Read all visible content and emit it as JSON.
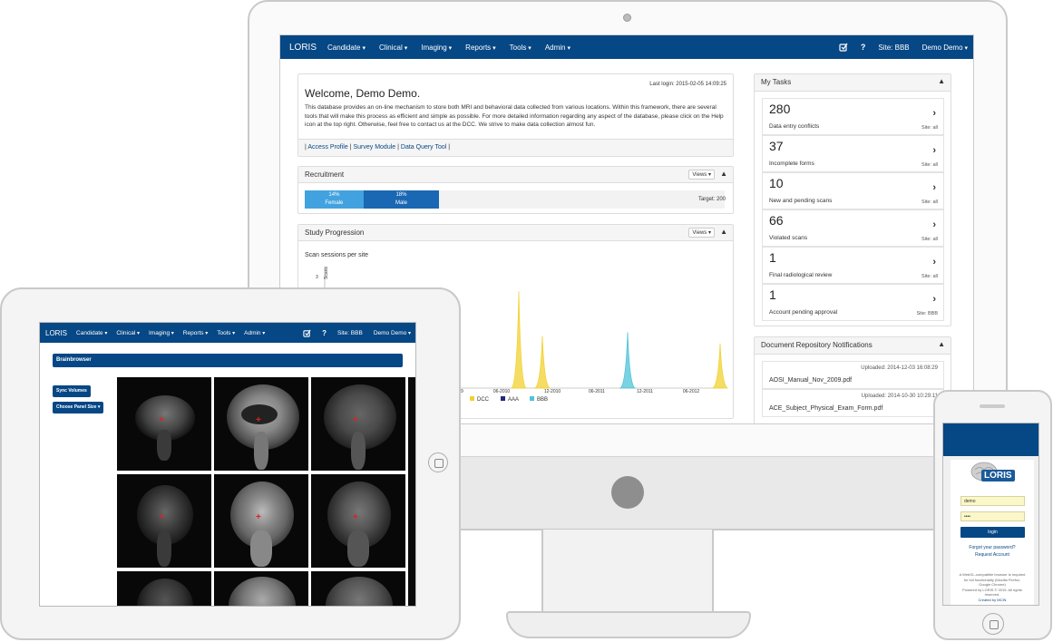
{
  "desktop": {
    "nav": {
      "brand": "LORIS",
      "menus": [
        "Candidate",
        "Clinical",
        "Imaging",
        "Reports",
        "Tools",
        "Admin"
      ],
      "site": "Site: BBB",
      "user": "Demo Demo",
      "help": "?"
    },
    "welcome": {
      "title": "Welcome, Demo Demo.",
      "last_login": "Last login: 2015-02-05 14:09:25",
      "body": "This database provides an on-line mechanism to store both MRI and behavioral data collected from various locations. Within this framework, there are several tools that will make this process as efficient and simple as possible. For more detailed information regarding any aspect of the database, please click on the Help icon at the top right. Otherwise, feel free to contact us at the DCC. We strive to make data collection almost fun.",
      "links": [
        "Access Profile",
        "Survey Module",
        "Data Query Tool"
      ]
    },
    "recruitment": {
      "title": "Recruitment",
      "views": "Views",
      "female": {
        "pct": "14%",
        "label": "Female",
        "value": 14,
        "color": "#42a2e0"
      },
      "male": {
        "pct": "18%",
        "label": "Male",
        "value": 18,
        "color": "#1a67b3"
      },
      "target": "Target: 200"
    },
    "progression": {
      "title": "Study Progression",
      "views": "Views",
      "chart_title": "Scan sessions per site",
      "y_axis": "Scans",
      "y_tick": "3",
      "x_ticks": [
        "09",
        "06-2010",
        "12-2010",
        "06-2011",
        "12-2011",
        "06-2012"
      ]
    },
    "tasks": {
      "title": "My Tasks",
      "items": [
        {
          "count": "280",
          "label": "Data entry conflicts",
          "site": "Site: all"
        },
        {
          "count": "37",
          "label": "Incomplete forms",
          "site": "Site: all"
        },
        {
          "count": "10",
          "label": "New and pending scans",
          "site": "Site: all"
        },
        {
          "count": "66",
          "label": "Violated scans",
          "site": "Site: all"
        },
        {
          "count": "1",
          "label": "Final radiological review",
          "site": "Site: all"
        },
        {
          "count": "1",
          "label": "Account pending approval",
          "site": "Site: BBB"
        }
      ]
    },
    "docs": {
      "title": "Document Repository Notifications",
      "items": [
        {
          "uploaded": "Uploaded: 2014-12-03 16:08:29",
          "file": "AOSI_Manual_Nov_2009.pdf"
        },
        {
          "uploaded": "Uploaded: 2014-10-30 10:29:11",
          "file": "ACE_Subject_Physical_Exam_Form.pdf"
        }
      ]
    }
  },
  "chart_data": {
    "type": "area",
    "title": "Scan sessions per site",
    "ylabel": "Scans",
    "series": [
      {
        "name": "DCC",
        "color": "#f2d230"
      },
      {
        "name": "AAA",
        "color": "#1f2a7a"
      },
      {
        "name": "BBB",
        "color": "#4fc3d8"
      }
    ],
    "x_ticks": [
      "09",
      "06-2010",
      "12-2010",
      "06-2011",
      "12-2011",
      "06-2012"
    ],
    "peaks": [
      {
        "series": "DCC",
        "x": "06-2010",
        "y": 2.6
      },
      {
        "series": "DCC",
        "x": "12-2010",
        "y": 1.4
      },
      {
        "series": "BBB",
        "x": "12-2011",
        "y": 1.5
      },
      {
        "series": "DCC",
        "x": "06-2012",
        "y": 1.2
      }
    ]
  },
  "tablet": {
    "nav": {
      "brand": "LORIS",
      "menus": [
        "Candidate",
        "Clinical",
        "Imaging",
        "Reports",
        "Tools",
        "Admin"
      ],
      "site": "Site: BBB",
      "user": "Demo Demo",
      "help": "?"
    },
    "header": "Brainbrowser",
    "sync_button": "Sync Volumes",
    "panel_size_button": "Choose Panel Size"
  },
  "phone": {
    "logo": "LORIS",
    "username": "demo",
    "password": "••••",
    "login_button": "login",
    "forgot": "Forgot your password?",
    "request": "Request Account",
    "footer": [
      "A WebGL-compatible browser is required",
      "for full functionality (Mozilla Firefox,",
      "Google Chrome)",
      "Powered by LORIS © 2015. All rights",
      "reserved.",
      "Created by MCIN"
    ]
  }
}
